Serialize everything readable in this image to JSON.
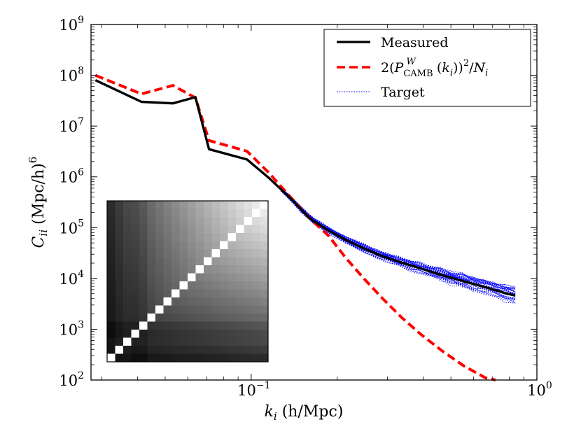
{
  "chart_data": {
    "type": "line",
    "title": "",
    "xlabel": {
      "var": "k",
      "sub": "i",
      "unit": " (h/Mpc)"
    },
    "ylabel": {
      "var": "C",
      "sub": "ii",
      "unit": " (Mpc/h)",
      "sup": "6"
    },
    "xscale": "log",
    "yscale": "log",
    "xlim": [
      0.0275,
      1.0
    ],
    "ylim": [
      100,
      1000000000
    ],
    "xticks": [
      {
        "value": 0.1,
        "base": "10",
        "exp": "−1"
      },
      {
        "value": 1.0,
        "base": "10",
        "exp": "0"
      }
    ],
    "yticks": [
      {
        "value": 100,
        "base": "10",
        "exp": "2"
      },
      {
        "value": 1000,
        "base": "10",
        "exp": "3"
      },
      {
        "value": 10000,
        "base": "10",
        "exp": "4"
      },
      {
        "value": 100000,
        "base": "10",
        "exp": "5"
      },
      {
        "value": 1000000,
        "base": "10",
        "exp": "6"
      },
      {
        "value": 10000000,
        "base": "10",
        "exp": "7"
      },
      {
        "value": 100000000,
        "base": "10",
        "exp": "8"
      },
      {
        "value": 1000000000,
        "base": "10",
        "exp": "9"
      }
    ],
    "legend": {
      "position": "top-right",
      "entries": [
        {
          "label": "Measured"
        },
        {
          "label": "2(P_CAMB^W(k_i))^2/N_i"
        },
        {
          "label": "Target"
        }
      ]
    },
    "series": [
      {
        "name": "Measured",
        "color": "#000000",
        "style": "solid",
        "x": [
          0.0285,
          0.0413,
          0.0532,
          0.0638,
          0.0712,
          0.0967,
          0.1154,
          0.1372,
          0.1607,
          0.1862,
          0.2148,
          0.2478,
          0.2875,
          0.3362,
          0.3951,
          0.4675,
          0.5547,
          0.6613,
          0.7883,
          0.8398
        ],
        "y": [
          80000000,
          30000000,
          28000000,
          37000000,
          3500000,
          2200000,
          950000,
          380000,
          150000,
          88000,
          57000,
          39000,
          27500,
          20500,
          15500,
          11500,
          8800,
          6700,
          5000,
          4600
        ]
      },
      {
        "name": "2(P_CAMB^W(k_i))^2/N_i",
        "color": "#ff0000",
        "style": "dashed",
        "x": [
          0.0285,
          0.0413,
          0.0532,
          0.0638,
          0.0712,
          0.0967,
          0.1154,
          0.1372,
          0.1607,
          0.1862,
          0.2148,
          0.2478,
          0.2875,
          0.3362,
          0.3951,
          0.4675,
          0.5547,
          0.6613,
          0.7166
        ],
        "y": [
          100000000,
          43000000,
          63000000,
          36000000,
          5200000,
          3200000,
          1200000,
          400000,
          150000,
          70000,
          25000,
          10000,
          4100,
          1700,
          770,
          370,
          190,
          110,
          100
        ]
      }
    ],
    "target_band": {
      "name": "Target",
      "color": "#0000ff",
      "style": "dotted",
      "x_range": [
        0.127,
        0.8398
      ],
      "count": 40
    },
    "inset": {
      "type": "heatmap",
      "size": 20,
      "colormap": "gray"
    }
  }
}
